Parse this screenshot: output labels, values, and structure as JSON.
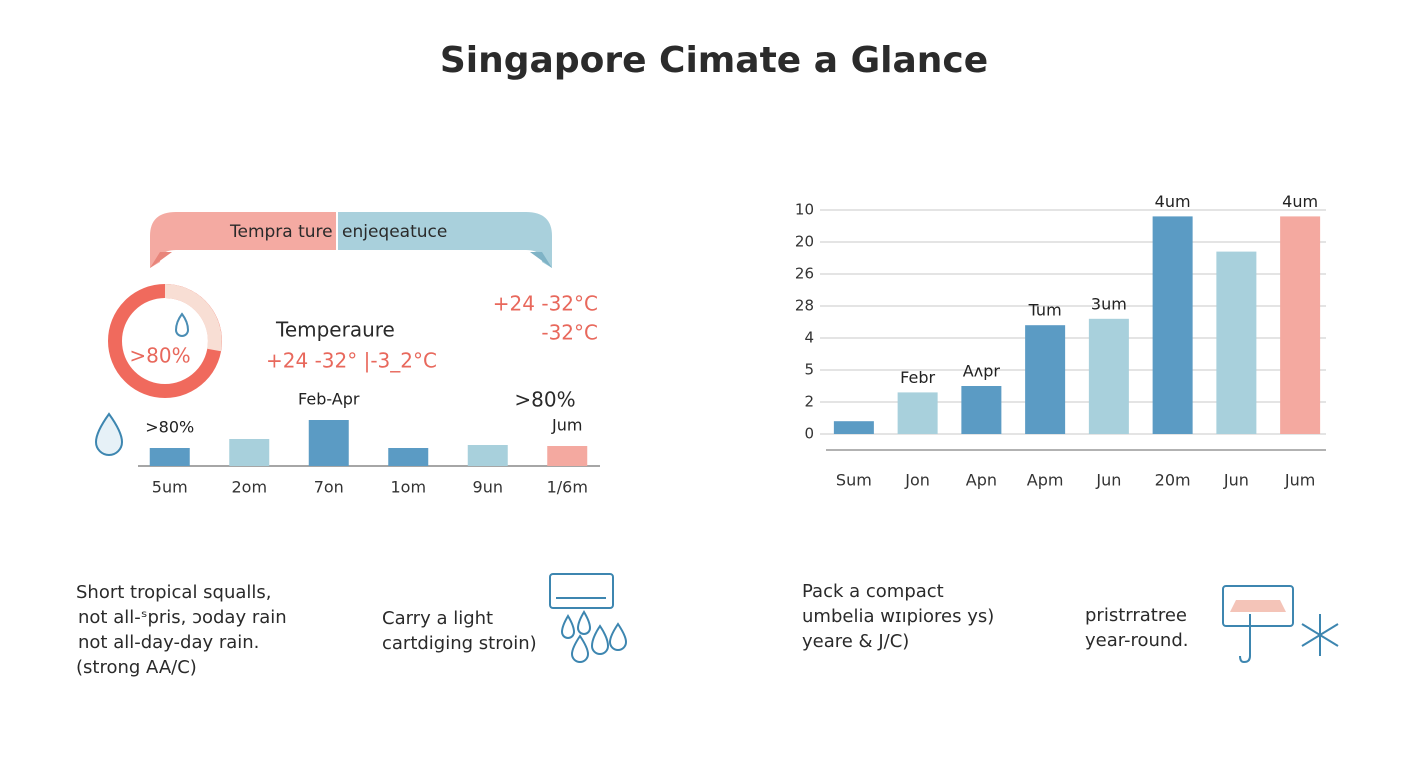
{
  "title": "Singapore Cimate a Glance",
  "banner": {
    "left": "Tempra ture",
    "right": "enjeqeatuce"
  },
  "panel": {
    "donut_label": ">80%",
    "heading": "Temperaure",
    "range_left": "+24 -32°  |-3_2°C",
    "range_right_1": "+24 -32°C",
    "range_right_2": "-32°C",
    "humidity": ">80%"
  },
  "chart_data": [
    {
      "type": "bar",
      "categories": [
        "5um",
        "2om",
        "7on",
        "1om",
        "9un",
        "1/6m"
      ],
      "values": [
        18,
        27,
        46,
        18,
        21,
        20
      ],
      "colors": [
        "#5b9bc4",
        "#a8d0dc",
        "#5b9bc4",
        "#5b9bc4",
        "#a8d0dc",
        "#f4a9a0"
      ],
      "bar_labels": [
        ">80%",
        null,
        "Feb-Apr",
        null,
        null,
        "Jum"
      ]
    },
    {
      "type": "bar",
      "categories": [
        "Sum",
        "Jon",
        "Apn",
        "Apm",
        "Jun",
        "20m",
        "Jun",
        "Jum"
      ],
      "values": [
        0.4,
        1.3,
        1.5,
        3.4,
        3.6,
        6.8,
        5.7,
        6.8
      ],
      "colors": [
        "#5b9bc4",
        "#a8d0dc",
        "#5b9bc4",
        "#5b9bc4",
        "#a8d0dc",
        "#5b9bc4",
        "#a8d0dc",
        "#f4a9a0"
      ],
      "bar_labels": [
        null,
        "Febr",
        "Aʌpr",
        "Tum",
        "3um",
        "4um",
        null,
        "4um"
      ],
      "ylim": [
        -0.5,
        7.5
      ],
      "yticks": [
        0,
        {
          "value": 1,
          "label": "2"
        },
        {
          "value": 2,
          "label": "5"
        },
        {
          "value": 3,
          "label": "4"
        },
        {
          "value": 4,
          "label": "28"
        },
        {
          "value": 5,
          "label": "26"
        },
        {
          "value": 6,
          "label": "20"
        },
        {
          "value": 7,
          "label": "10"
        }
      ],
      "grid": true
    }
  ],
  "tips": [
    {
      "lines": [
        "Short tropical squalls,",
        "not all-ˢpris, ɔoday rain",
        "not all-day-day rain.",
        "(strong AA/C)"
      ]
    },
    {
      "lines": [
        "Carry a light",
        "cartdiging stroin)"
      ]
    },
    {
      "lines": [
        "Pack a compact",
        "umbelia wɪıpiores ys)",
        "yeare & J/C)"
      ]
    },
    {
      "lines": [
        "pristrratree",
        "year-round."
      ]
    }
  ]
}
